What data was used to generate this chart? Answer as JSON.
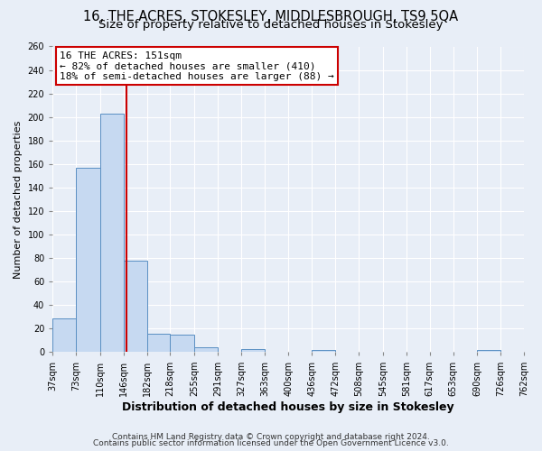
{
  "title": "16, THE ACRES, STOKESLEY, MIDDLESBROUGH, TS9 5QA",
  "subtitle": "Size of property relative to detached houses in Stokesley",
  "xlabel": "Distribution of detached houses by size in Stokesley",
  "ylabel": "Number of detached properties",
  "bin_edges": [
    37,
    73,
    110,
    146,
    182,
    218,
    255,
    291,
    327,
    363,
    400,
    436,
    472,
    508,
    545,
    581,
    617,
    653,
    690,
    726,
    762
  ],
  "bar_heights": [
    29,
    157,
    203,
    78,
    16,
    15,
    4,
    0,
    3,
    0,
    0,
    2,
    0,
    0,
    0,
    0,
    0,
    0,
    2,
    0
  ],
  "bar_color": "#c6d9f1",
  "bar_edge_color": "#5a8fc3",
  "reference_line_x": 151,
  "reference_line_color": "#cc0000",
  "annotation_line1": "16 THE ACRES: 151sqm",
  "annotation_line2": "← 82% of detached houses are smaller (410)",
  "annotation_line3": "18% of semi-detached houses are larger (88) →",
  "annotation_box_facecolor": "white",
  "annotation_box_edgecolor": "#cc0000",
  "ylim": [
    0,
    260
  ],
  "yticks": [
    0,
    20,
    40,
    60,
    80,
    100,
    120,
    140,
    160,
    180,
    200,
    220,
    240,
    260
  ],
  "tick_labels": [
    "37sqm",
    "73sqm",
    "110sqm",
    "146sqm",
    "182sqm",
    "218sqm",
    "255sqm",
    "291sqm",
    "327sqm",
    "363sqm",
    "400sqm",
    "436sqm",
    "472sqm",
    "508sqm",
    "545sqm",
    "581sqm",
    "617sqm",
    "653sqm",
    "690sqm",
    "726sqm",
    "762sqm"
  ],
  "footer_line1": "Contains HM Land Registry data © Crown copyright and database right 2024.",
  "footer_line2": "Contains public sector information licensed under the Open Government Licence v3.0.",
  "background_color": "#e8eef7",
  "grid_color": "white",
  "title_fontsize": 10.5,
  "subtitle_fontsize": 9.5,
  "xlabel_fontsize": 9,
  "ylabel_fontsize": 8,
  "tick_fontsize": 7,
  "annotation_fontsize": 8,
  "footer_fontsize": 6.5
}
